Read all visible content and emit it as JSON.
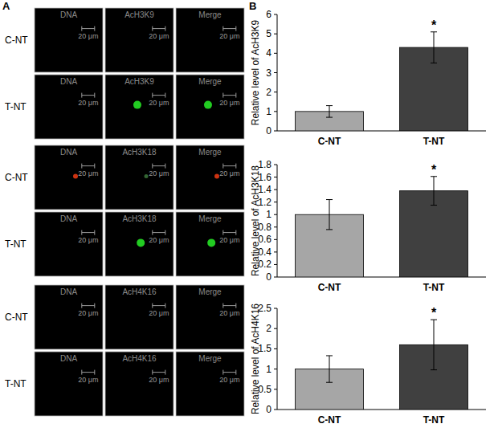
{
  "panels": {
    "a_label": "A",
    "b_label": "B"
  },
  "micrographs": [
    {
      "columns": [
        "DNA",
        "AcH3K9",
        "Merge"
      ],
      "rows": [
        "C-NT",
        "T-NT"
      ],
      "scale_bar": "20 μm"
    },
    {
      "columns": [
        "DNA",
        "AcH3K18",
        "Merge"
      ],
      "rows": [
        "C-NT",
        "T-NT"
      ],
      "scale_bar": "20 μm"
    },
    {
      "columns": [
        "DNA",
        "AcH4K16",
        "Merge"
      ],
      "rows": [
        "C-NT",
        "T-NT"
      ],
      "scale_bar": "20 μm"
    }
  ],
  "chart_data": [
    {
      "type": "bar",
      "ylabel": "Relative level of AcH3K9",
      "categories": [
        "C-NT",
        "T-NT"
      ],
      "values": [
        1.0,
        4.3
      ],
      "errors": [
        0.3,
        0.8
      ],
      "colors": [
        "#a6a6a6",
        "#404040"
      ],
      "ylim": [
        0,
        6
      ],
      "yticks": [
        0,
        1,
        2,
        3,
        4,
        5,
        6
      ],
      "annotations": [
        {
          "category": "T-NT",
          "text": "*"
        }
      ]
    },
    {
      "type": "bar",
      "ylabel": "Relative level of AcH3K18",
      "categories": [
        "C-NT",
        "T-NT"
      ],
      "values": [
        1.0,
        1.38
      ],
      "errors": [
        0.24,
        0.23
      ],
      "colors": [
        "#a6a6a6",
        "#404040"
      ],
      "ylim": [
        0,
        1.8
      ],
      "yticks": [
        0,
        0.2,
        0.4,
        0.6,
        0.8,
        1,
        1.2,
        1.4,
        1.6,
        1.8
      ],
      "annotations": [
        {
          "category": "T-NT",
          "text": "*"
        }
      ]
    },
    {
      "type": "bar",
      "ylabel": "Relative level of AcH4K16",
      "categories": [
        "C-NT",
        "T-NT"
      ],
      "values": [
        1.0,
        1.6
      ],
      "errors": [
        0.33,
        0.62
      ],
      "colors": [
        "#a6a6a6",
        "#404040"
      ],
      "ylim": [
        0,
        2.5
      ],
      "yticks": [
        0,
        0.5,
        1,
        1.5,
        2,
        2.5
      ],
      "annotations": [
        {
          "category": "T-NT",
          "text": "*"
        }
      ]
    }
  ]
}
